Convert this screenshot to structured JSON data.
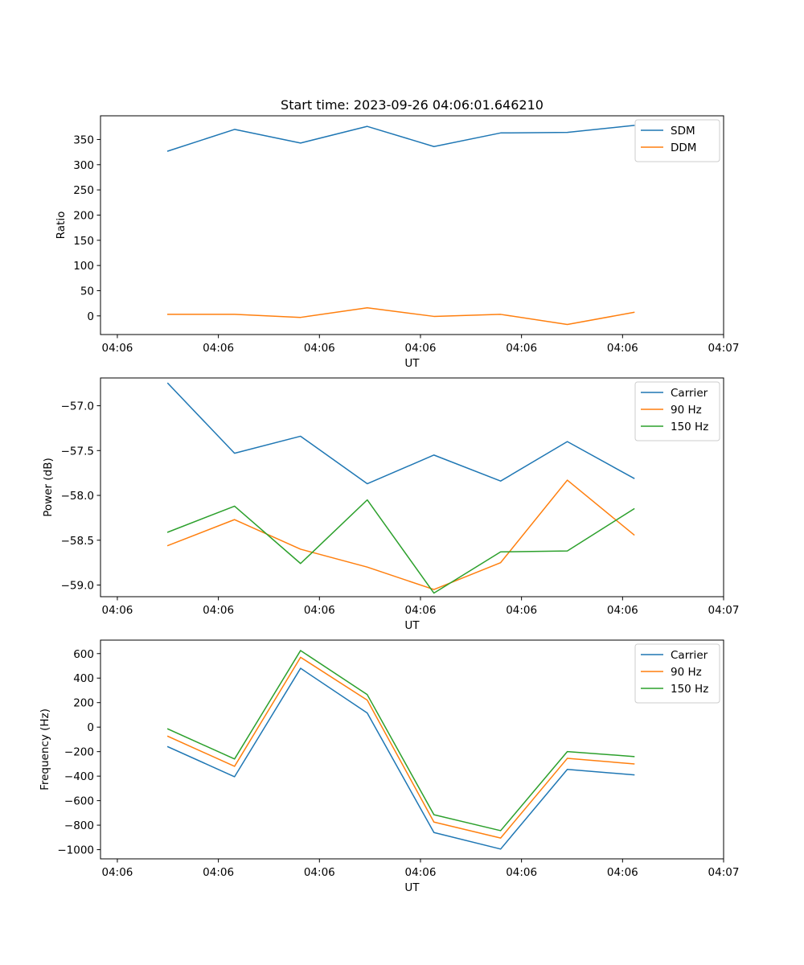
{
  "colors": {
    "C0": "#1f77b4",
    "C1": "#ff7f0e",
    "C2": "#2ca02c"
  },
  "chart_data": [
    {
      "type": "line",
      "title": "Start time: 2023-09-26 04:06:01.646210",
      "xlabel": "UT",
      "ylabel": "Ratio",
      "xlim": [
        -0.25,
        9.0
      ],
      "x_ticks": [
        0,
        1.5,
        3,
        4.5,
        6,
        7.5,
        9
      ],
      "x_tick_labels": [
        "04:06",
        "04:06",
        "04:06",
        "04:06",
        "04:06",
        "04:06",
        "04:07"
      ],
      "ylim": [
        -37,
        397
      ],
      "y_ticks": [
        0,
        50,
        100,
        150,
        200,
        250,
        300,
        350
      ],
      "y_tick_labels": [
        "0",
        "50",
        "100",
        "150",
        "200",
        "250",
        "300",
        "350"
      ],
      "x": [
        0.75,
        1.74,
        2.72,
        3.71,
        4.7,
        5.69,
        6.68,
        7.67
      ],
      "legend": "upper right",
      "series": [
        {
          "name": "SDM",
          "color_key": "C0",
          "values": [
            327,
            370,
            343,
            376,
            336,
            363,
            364,
            378
          ]
        },
        {
          "name": "DDM",
          "color_key": "C1",
          "values": [
            3,
            3,
            -3,
            16,
            -1,
            3,
            -17,
            7
          ]
        }
      ]
    },
    {
      "type": "line",
      "title": "",
      "xlabel": "UT",
      "ylabel": "Power (dB)",
      "xlim": [
        -0.25,
        9.0
      ],
      "x_ticks": [
        0,
        1.5,
        3,
        4.5,
        6,
        7.5,
        9
      ],
      "x_tick_labels": [
        "04:06",
        "04:06",
        "04:06",
        "04:06",
        "04:06",
        "04:06",
        "04:07"
      ],
      "ylim": [
        -59.13,
        -56.69
      ],
      "y_ticks": [
        -59.0,
        -58.5,
        -58.0,
        -57.5,
        -57.0
      ],
      "y_tick_labels": [
        "−59.0",
        "−58.5",
        "−58.0",
        "−57.5",
        "−57.0"
      ],
      "x": [
        0.75,
        1.74,
        2.72,
        3.71,
        4.7,
        5.69,
        6.68,
        7.67
      ],
      "legend": "upper right",
      "series": [
        {
          "name": "Carrier",
          "color_key": "C0",
          "values": [
            -56.75,
            -57.53,
            -57.34,
            -57.87,
            -57.55,
            -57.84,
            -57.4,
            -57.81
          ]
        },
        {
          "name": "90 Hz",
          "color_key": "C1",
          "values": [
            -58.56,
            -58.27,
            -58.6,
            -58.8,
            -59.05,
            -58.75,
            -57.83,
            -58.44
          ]
        },
        {
          "name": "150 Hz",
          "color_key": "C2",
          "values": [
            -58.41,
            -58.12,
            -58.76,
            -58.05,
            -59.09,
            -58.63,
            -58.62,
            -58.15
          ]
        }
      ]
    },
    {
      "type": "line",
      "title": "",
      "xlabel": "UT",
      "ylabel": "Frequency (Hz)",
      "xlim": [
        -0.25,
        9.0
      ],
      "x_ticks": [
        0,
        1.5,
        3,
        4.5,
        6,
        7.5,
        9
      ],
      "x_tick_labels": [
        "04:06",
        "04:06",
        "04:06",
        "04:06",
        "04:06",
        "04:06",
        "04:07"
      ],
      "ylim": [
        -1075,
        710
      ],
      "y_ticks": [
        -1000,
        -800,
        -600,
        -400,
        -200,
        0,
        200,
        400,
        600
      ],
      "y_tick_labels": [
        "−1000",
        "−800",
        "−600",
        "−400",
        "−200",
        "0",
        "200",
        "400",
        "600"
      ],
      "x": [
        0.75,
        1.74,
        2.72,
        3.71,
        4.7,
        5.69,
        6.68,
        7.67
      ],
      "legend": "upper right",
      "series": [
        {
          "name": "Carrier",
          "color_key": "C0",
          "values": [
            -160,
            -405,
            480,
            115,
            -860,
            -995,
            -345,
            -390
          ]
        },
        {
          "name": "90 Hz",
          "color_key": "C1",
          "values": [
            -75,
            -320,
            570,
            220,
            -775,
            -905,
            -255,
            -300
          ]
        },
        {
          "name": "150 Hz",
          "color_key": "C2",
          "values": [
            -15,
            -260,
            625,
            265,
            -715,
            -845,
            -200,
            -240
          ]
        }
      ]
    }
  ]
}
